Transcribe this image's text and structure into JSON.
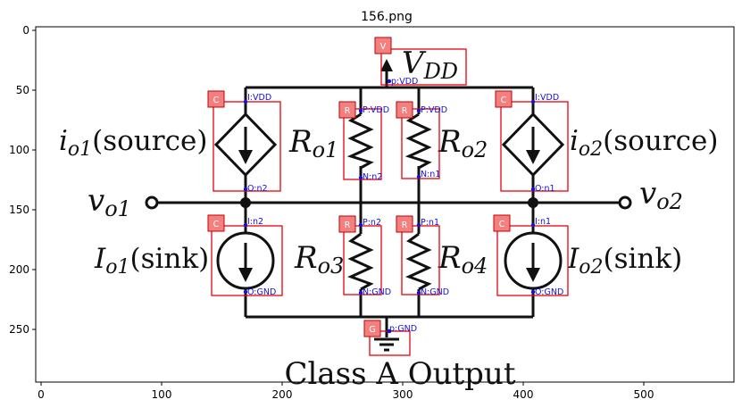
{
  "title": "156.png",
  "x_ticks": [
    "0",
    "100",
    "200",
    "300",
    "400",
    "500"
  ],
  "y_ticks": [
    "0",
    "50",
    "100",
    "150",
    "200",
    "250"
  ],
  "circuit": {
    "vdd_label": "V",
    "vdd_sub": "DD",
    "vo1": "v",
    "vo1_sub": "o1",
    "vo2": "v",
    "vo2_sub": "o2",
    "io1_main": "i",
    "io1_sub": "o1",
    "io1_suffix": "(source)",
    "io2_main": "i",
    "io2_sub": "o2",
    "io2_suffix": "(source)",
    "Io1_main": "I",
    "Io1_sub": "o1",
    "Io1_suffix": "(sink)",
    "Io2_main": "I",
    "Io2_sub": "o2",
    "Io2_suffix": "(sink)",
    "ro1": "R",
    "ro1_sub": "o1",
    "ro2": "R",
    "ro2_sub": "o2",
    "ro3": "R",
    "ro3_sub": "o3",
    "ro4": "R",
    "ro4_sub": "o4",
    "caption": "Class A Output"
  },
  "annotations": {
    "tags": {
      "v": "V",
      "c": "C",
      "r": "R",
      "g": "G"
    },
    "pins": {
      "vdd_p": "p:VDD",
      "c1_top": "I:VDD",
      "c1_bot": "O:n2",
      "c2_top": "I:VDD",
      "c2_bot": "O:n1",
      "r1_top": "P:VDD",
      "r1_bot": "N:n2",
      "r2_top": "P:VDD",
      "r2_bot": "N:n1",
      "c3_top": "I:n2",
      "c3_bot": "O:GND",
      "c4_top": "I:n1",
      "c4_bot": "O:GND",
      "r3_top": "P:n2",
      "r3_bot": "N:GND",
      "r4_top": "P:n1",
      "r4_bot": "N:GND",
      "gnd_p": "p:GND"
    }
  }
}
